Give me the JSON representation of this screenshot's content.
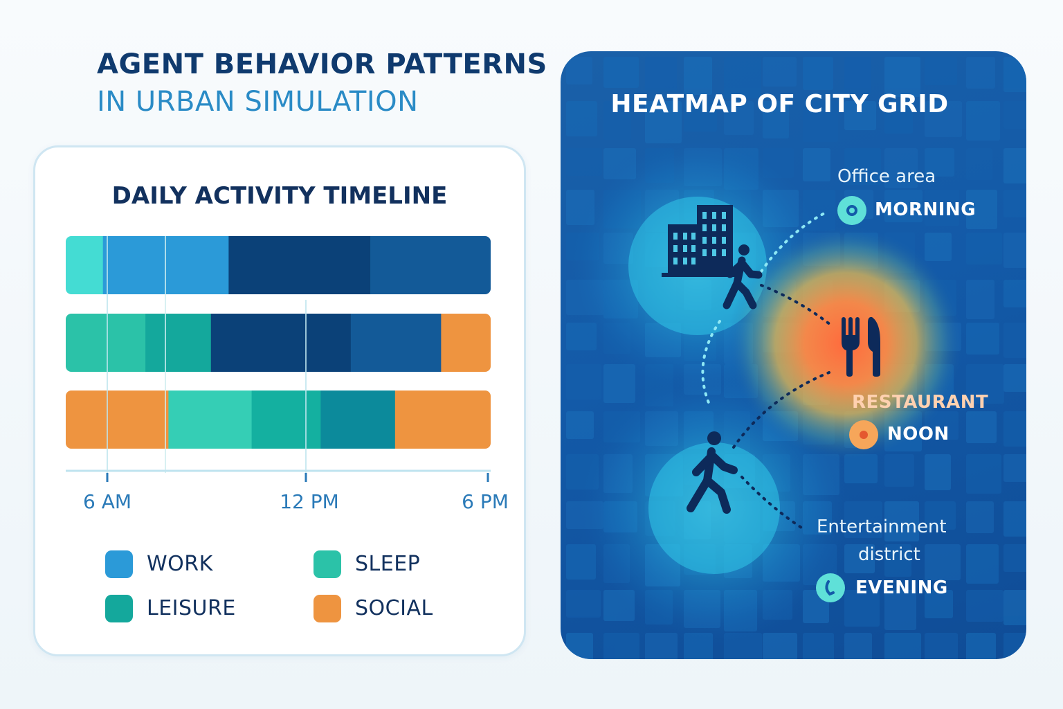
{
  "header": {
    "title": "AGENT BEHAVIOR PATTERNS",
    "subtitle": "IN URBAN SIMULATION"
  },
  "timeline": {
    "title": "DAILY ACTIVITY TIMELINE",
    "axis_labels": [
      "6 AM",
      "12 PM",
      "6 PM"
    ],
    "legend": [
      {
        "key": "work",
        "label": "WORK",
        "color": "#2b9ad8"
      },
      {
        "key": "sleep",
        "label": "SLEEP",
        "color": "#2bc2a8"
      },
      {
        "key": "leisure",
        "label": "LEISURE",
        "color": "#14a89c"
      },
      {
        "key": "social",
        "label": "SOCIAL",
        "color": "#ee9440"
      }
    ]
  },
  "chart_data": {
    "type": "bar",
    "x_range_hours": [
      6,
      18
    ],
    "rows": [
      {
        "segments": [
          {
            "start": 6.0,
            "end": 7.05,
            "color": "#44dcd3"
          },
          {
            "start": 7.05,
            "end": 10.6,
            "color": "#2b9ad8"
          },
          {
            "start": 10.6,
            "end": 14.6,
            "color": "#0b4178"
          },
          {
            "start": 14.6,
            "end": 18.0,
            "color": "#135a98"
          }
        ]
      },
      {
        "segments": [
          {
            "start": 6.0,
            "end": 8.25,
            "color": "#2bc2a8"
          },
          {
            "start": 8.25,
            "end": 10.1,
            "color": "#14a89c"
          },
          {
            "start": 10.1,
            "end": 14.05,
            "color": "#0b4178"
          },
          {
            "start": 14.05,
            "end": 16.6,
            "color": "#135a98"
          },
          {
            "start": 16.6,
            "end": 18.0,
            "color": "#ee9440"
          }
        ]
      },
      {
        "segments": [
          {
            "start": 6.0,
            "end": 8.9,
            "color": "#ee9440"
          },
          {
            "start": 8.9,
            "end": 11.25,
            "color": "#35ceb5"
          },
          {
            "start": 11.25,
            "end": 13.2,
            "color": "#14b0a0"
          },
          {
            "start": 13.2,
            "end": 15.3,
            "color": "#0c8a9b"
          },
          {
            "start": 15.3,
            "end": 18.0,
            "color": "#ee9440"
          }
        ]
      }
    ]
  },
  "map": {
    "title": "HEATMAP OF CITY GRID",
    "office": {
      "place": "Office area",
      "time": "MORNING"
    },
    "restaurant": {
      "place": "RESTAURANT",
      "time": "NOON"
    },
    "entertainment": {
      "place_line1": "Entertainment",
      "place_line2": "district",
      "time": "EVENING"
    },
    "icons": [
      "buildings-icon",
      "walking-person-icon",
      "fork-knife-icon",
      "clock-icon",
      "sun-icon"
    ],
    "colors": {
      "background": "#135aa8",
      "hotspot_cool": "#3fd0ea",
      "hotspot_warm": "#ff7a45"
    }
  }
}
